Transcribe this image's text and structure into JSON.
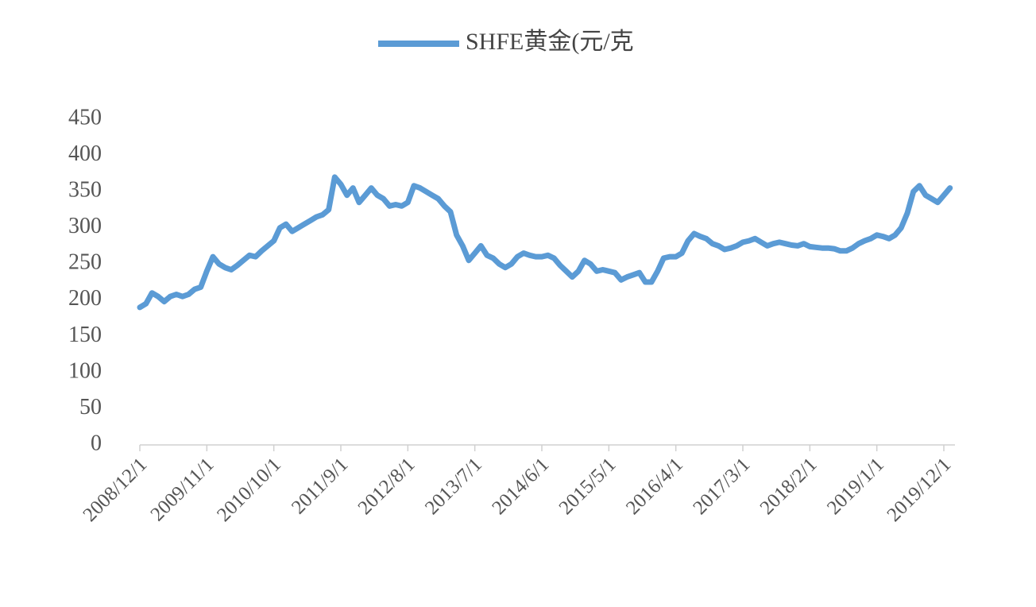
{
  "chart_data": {
    "type": "line",
    "x": [
      "2008/12/1",
      "2009/1/1",
      "2009/2/1",
      "2009/3/1",
      "2009/4/1",
      "2009/5/1",
      "2009/6/1",
      "2009/7/1",
      "2009/8/1",
      "2009/9/1",
      "2009/10/1",
      "2009/11/1",
      "2009/12/1",
      "2010/1/1",
      "2010/2/1",
      "2010/3/1",
      "2010/4/1",
      "2010/5/1",
      "2010/6/1",
      "2010/7/1",
      "2010/8/1",
      "2010/9/1",
      "2010/10/1",
      "2010/11/1",
      "2010/12/1",
      "2011/1/1",
      "2011/2/1",
      "2011/3/1",
      "2011/4/1",
      "2011/5/1",
      "2011/6/1",
      "2011/7/1",
      "2011/8/1",
      "2011/9/1",
      "2011/10/1",
      "2011/11/1",
      "2011/12/1",
      "2012/1/1",
      "2012/2/1",
      "2012/3/1",
      "2012/4/1",
      "2012/5/1",
      "2012/6/1",
      "2012/7/1",
      "2012/8/1",
      "2012/9/1",
      "2012/10/1",
      "2012/11/1",
      "2012/12/1",
      "2013/1/1",
      "2013/2/1",
      "2013/3/1",
      "2013/4/1",
      "2013/5/1",
      "2013/6/1",
      "2013/7/1",
      "2013/8/1",
      "2013/9/1",
      "2013/10/1",
      "2013/11/1",
      "2013/12/1",
      "2014/1/1",
      "2014/2/1",
      "2014/3/1",
      "2014/4/1",
      "2014/5/1",
      "2014/6/1",
      "2014/7/1",
      "2014/8/1",
      "2014/9/1",
      "2014/10/1",
      "2014/11/1",
      "2014/12/1",
      "2015/1/1",
      "2015/2/1",
      "2015/3/1",
      "2015/4/1",
      "2015/5/1",
      "2015/6/1",
      "2015/7/1",
      "2015/8/1",
      "2015/9/1",
      "2015/10/1",
      "2015/11/1",
      "2015/12/1",
      "2016/1/1",
      "2016/2/1",
      "2016/3/1",
      "2016/4/1",
      "2016/5/1",
      "2016/6/1",
      "2016/7/1",
      "2016/8/1",
      "2016/9/1",
      "2016/10/1",
      "2016/11/1",
      "2016/12/1",
      "2017/1/1",
      "2017/2/1",
      "2017/3/1",
      "2017/4/1",
      "2017/5/1",
      "2017/6/1",
      "2017/7/1",
      "2017/8/1",
      "2017/9/1",
      "2017/10/1",
      "2017/11/1",
      "2017/12/1",
      "2018/1/1",
      "2018/2/1",
      "2018/3/1",
      "2018/4/1",
      "2018/5/1",
      "2018/6/1",
      "2018/7/1",
      "2018/8/1",
      "2018/9/1",
      "2018/10/1",
      "2018/11/1",
      "2018/12/1",
      "2019/1/1",
      "2019/2/1",
      "2019/3/1",
      "2019/4/1",
      "2019/5/1",
      "2019/6/1",
      "2019/7/1",
      "2019/8/1",
      "2019/9/1",
      "2019/10/1",
      "2019/11/1",
      "2019/12/1",
      "2020/1/1"
    ],
    "series": [
      {
        "name": "SHFE黄金(元/克",
        "color": "#5b9bd5",
        "values": [
          190,
          195,
          210,
          205,
          198,
          205,
          208,
          205,
          208,
          215,
          218,
          240,
          260,
          250,
          245,
          242,
          248,
          255,
          262,
          260,
          268,
          275,
          282,
          300,
          305,
          295,
          300,
          305,
          310,
          315,
          318,
          325,
          370,
          360,
          345,
          355,
          335,
          345,
          355,
          345,
          340,
          330,
          332,
          330,
          335,
          358,
          355,
          350,
          345,
          340,
          330,
          322,
          290,
          275,
          255,
          265,
          275,
          262,
          258,
          250,
          245,
          250,
          260,
          265,
          262,
          260,
          260,
          262,
          258,
          248,
          240,
          232,
          240,
          255,
          250,
          240,
          242,
          240,
          238,
          228,
          232,
          235,
          238,
          225,
          225,
          240,
          258,
          260,
          260,
          265,
          282,
          292,
          288,
          285,
          278,
          275,
          270,
          272,
          275,
          280,
          282,
          285,
          280,
          275,
          278,
          280,
          278,
          276,
          275,
          278,
          274,
          273,
          272,
          272,
          271,
          268,
          268,
          272,
          278,
          282,
          285,
          290,
          288,
          285,
          290,
          300,
          320,
          350,
          358,
          345,
          340,
          335,
          345,
          355
        ]
      }
    ],
    "xticks": [
      "2008/12/1",
      "2009/11/1",
      "2010/10/1",
      "2011/9/1",
      "2012/8/1",
      "2013/7/1",
      "2014/6/1",
      "2015/5/1",
      "2016/4/1",
      "2017/3/1",
      "2018/2/1",
      "2019/1/1",
      "2019/12/1"
    ],
    "ylim": [
      0,
      450
    ],
    "yticks": [
      0,
      50,
      100,
      150,
      200,
      250,
      300,
      350,
      400,
      450
    ],
    "grid": false,
    "legend": "top"
  }
}
